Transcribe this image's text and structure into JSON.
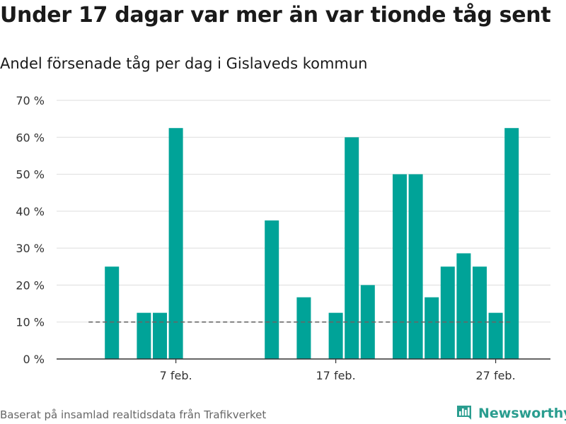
{
  "title": "Under 17 dagar var mer än var tionde tåg sent",
  "subtitle": "Andel försenade tåg per dag i Gislaveds kommun",
  "footer": "Baserat på insamlad realtidsdata från Trafikverket",
  "brand": {
    "name": "Newsworthy",
    "icon": "bar-chart-logo-icon",
    "color": "#2a9d8f"
  },
  "chart_data": {
    "type": "bar",
    "x_unit": "day of February",
    "x": [
      1,
      2,
      3,
      4,
      5,
      6,
      7,
      8,
      9,
      10,
      11,
      12,
      13,
      14,
      15,
      16,
      17,
      18,
      19,
      20,
      21,
      22,
      23,
      24,
      25,
      26,
      27,
      28
    ],
    "values": [
      null,
      null,
      25,
      null,
      12.5,
      12.5,
      62.5,
      null,
      null,
      null,
      null,
      null,
      37.5,
      null,
      16.7,
      null,
      12.5,
      60,
      20,
      null,
      50,
      50,
      16.7,
      25,
      28.6,
      25,
      12.5,
      62.5
    ],
    "y_ticks": [
      0,
      10,
      20,
      30,
      40,
      50,
      60,
      70
    ],
    "y_tick_labels": [
      "0 %",
      "10 %",
      "20 %",
      "30 %",
      "40 %",
      "50 %",
      "60 %",
      "70 %"
    ],
    "x_ticks": [
      7,
      17,
      27
    ],
    "x_tick_labels": [
      "7 feb.",
      "17 feb.",
      "27 feb."
    ],
    "ylim": [
      0,
      70
    ],
    "reference_line": {
      "value": 10,
      "from": 3,
      "to": 28,
      "style": "dashed",
      "color": "#666666"
    },
    "bar_color": "#00a398",
    "grid": true,
    "grid_color": "#dddddd"
  }
}
